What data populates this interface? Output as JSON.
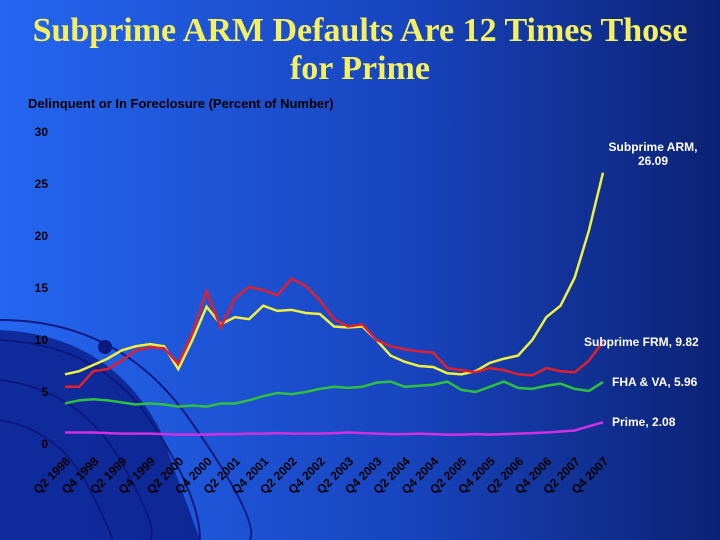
{
  "chart_data": {
    "type": "line",
    "title": "Subprime ARM Defaults Are 12 Times Those for Prime",
    "y_label": "Delinquent or In Foreclosure (Percent of Number)",
    "categories": [
      "Q2 1998",
      null,
      "Q4 1998",
      null,
      "Q2 1999",
      null,
      "Q4 1999",
      null,
      "Q2 2000",
      null,
      "Q4 2000",
      null,
      "Q2 2001",
      null,
      "Q4 2001",
      null,
      "Q2 2002",
      null,
      "Q4 2002",
      null,
      "Q2 2003",
      null,
      "Q4 2003",
      null,
      "Q2 2004",
      null,
      "Q4 2004",
      null,
      "Q2 2005",
      null,
      "Q4 2005",
      null,
      "Q2 2006",
      null,
      "Q4 2006",
      null,
      "Q2 2007",
      null,
      "Q4 2007"
    ],
    "series": [
      {
        "name": "Subprime ARM, 26.09",
        "color": "#f0f040",
        "values": [
          6.7,
          7.0,
          7.6,
          8.2,
          9.0,
          9.4,
          9.6,
          9.4,
          7.2,
          10,
          13.2,
          11.5,
          12.2,
          12.0,
          13.3,
          12.8,
          12.9,
          12.6,
          12.5,
          11.3,
          11.2,
          11.3,
          10.0,
          8.5,
          7.9,
          7.5,
          7.4,
          6.8,
          6.7,
          7.0,
          7.8,
          8.2,
          8.5,
          10.0,
          12.2,
          13.3,
          16.0,
          20.5,
          26.09
        ]
      },
      {
        "name": "Subprime FRM, 9.82",
        "color": "#e02030",
        "values": [
          5.5,
          5.5,
          7.0,
          7.2,
          8.0,
          9.0,
          9.3,
          9.2,
          7.7,
          10.7,
          14.7,
          11.2,
          14.0,
          15.1,
          14.8,
          14.3,
          15.9,
          15.2,
          13.8,
          12.0,
          11.3,
          11.5,
          10.0,
          9.4,
          9.1,
          8.9,
          8.8,
          7.3,
          7.1,
          6.9,
          7.3,
          7.1,
          6.7,
          6.6,
          7.3,
          7.0,
          6.9,
          8.0,
          9.82
        ]
      },
      {
        "name": "FHA & VA, 5.96",
        "color": "#30c040",
        "values": [
          3.9,
          4.2,
          4.3,
          4.2,
          4.0,
          3.8,
          3.9,
          3.8,
          3.6,
          3.7,
          3.6,
          3.9,
          3.9,
          4.2,
          4.6,
          4.9,
          4.8,
          5.0,
          5.3,
          5.5,
          5.4,
          5.5,
          5.9,
          6.0,
          5.5,
          5.6,
          5.7,
          6.0,
          5.2,
          5.0,
          5.5,
          6.0,
          5.4,
          5.3,
          5.6,
          5.8,
          5.3,
          5.1,
          5.96
        ]
      },
      {
        "name": "Prime, 2.08",
        "color": "#d030e0",
        "values": [
          1.1,
          1.1,
          1.1,
          1.05,
          1.0,
          1.0,
          1.0,
          0.95,
          0.9,
          0.9,
          0.9,
          0.95,
          0.95,
          1.0,
          1.0,
          1.05,
          1.0,
          1.0,
          1.0,
          1.05,
          1.1,
          1.05,
          1.0,
          0.95,
          0.95,
          1.0,
          0.95,
          0.9,
          0.9,
          0.95,
          0.9,
          0.95,
          1.0,
          1.05,
          1.1,
          1.2,
          1.3,
          1.7,
          2.08
        ]
      }
    ],
    "ylim": [
      0,
      30
    ],
    "yticks": [
      0,
      5,
      10,
      15,
      20,
      25,
      30
    ],
    "grid": false
  }
}
